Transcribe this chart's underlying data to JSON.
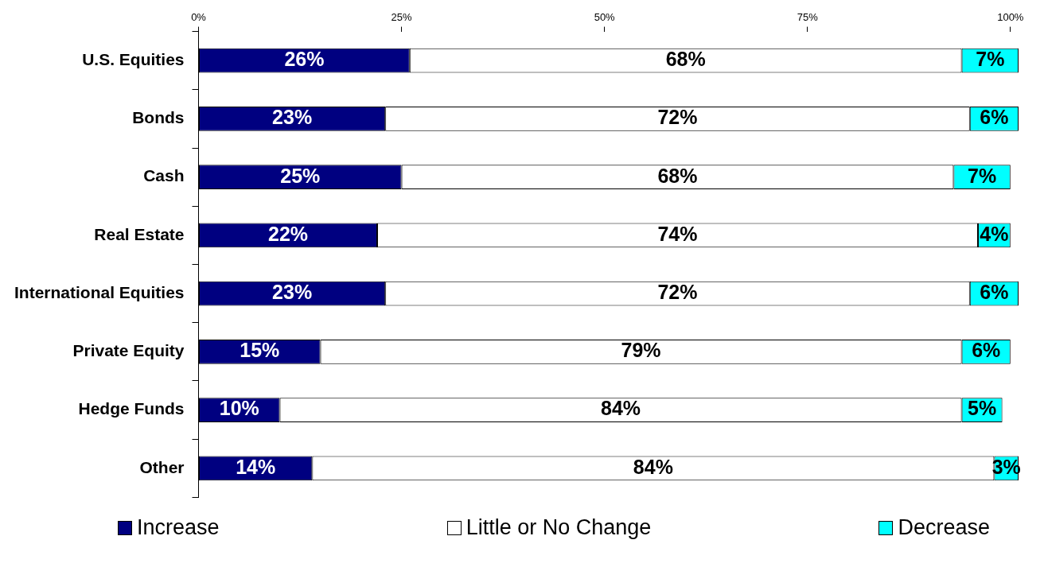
{
  "chart_data": {
    "type": "bar",
    "orientation": "horizontal",
    "stacked": true,
    "categories": [
      "U.S. Equities",
      "Bonds",
      "Cash",
      "Real Estate",
      "International Equities",
      "Private Equity",
      "Hedge Funds",
      "Other"
    ],
    "series": [
      {
        "name": "Increase",
        "color": "#000080",
        "values": [
          26,
          23,
          25,
          22,
          23,
          15,
          10,
          14
        ],
        "value_labels": [
          "26%",
          "23%",
          "25%",
          "22%",
          "23%",
          "15%",
          "10%",
          "14%"
        ]
      },
      {
        "name": "Little or No Change",
        "color": "#ffffff",
        "values": [
          68,
          72,
          68,
          74,
          72,
          79,
          84,
          84
        ],
        "value_labels": [
          "68%",
          "72%",
          "68%",
          "74%",
          "72%",
          "79%",
          "84%",
          "84%"
        ]
      },
      {
        "name": "Decrease",
        "color": "#00ffff",
        "values": [
          7,
          6,
          7,
          4,
          6,
          6,
          5,
          3
        ],
        "value_labels": [
          "7%",
          "6%",
          "7%",
          "4%",
          "6%",
          "6%",
          "5%",
          "3%"
        ]
      }
    ],
    "xlim": [
      0,
      101
    ],
    "xticks": [
      {
        "value": 0,
        "label": "0%"
      },
      {
        "value": 25,
        "label": "25%"
      },
      {
        "value": 50,
        "label": "50%"
      },
      {
        "value": 75,
        "label": "75%"
      },
      {
        "value": 100,
        "label": "100%"
      }
    ],
    "grid": false,
    "legend": "bottom"
  }
}
